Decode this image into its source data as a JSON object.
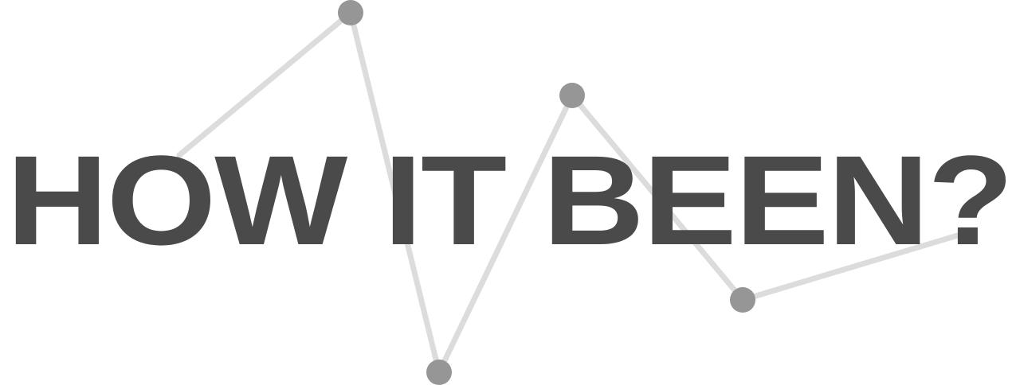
{
  "logo": {
    "text": "HOW IT BEEN?",
    "text_color": "#4a4a4a",
    "line_color": "#dcdcdc",
    "marker_color": "#969696"
  }
}
